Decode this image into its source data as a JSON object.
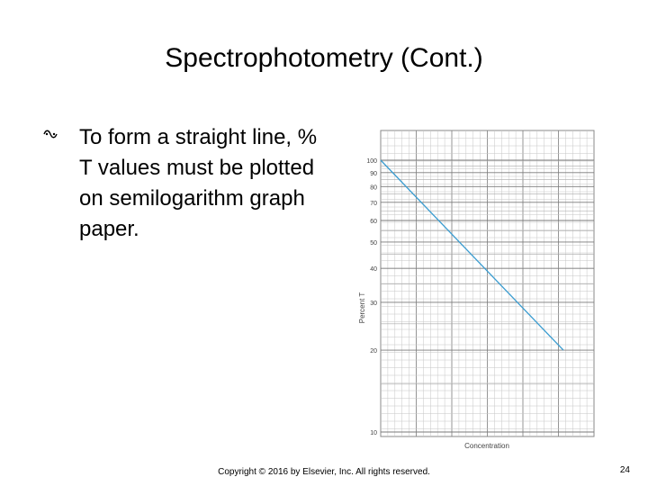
{
  "slide": {
    "title": "Spectrophotometry (Cont.)",
    "bullet_icon": "wingding-bullet-icon",
    "bullet_text": "To form a straight line, % T values must be plotted on semilogarithm graph paper.",
    "copyright": "Copyright © 2016 by Elsevier, Inc. All rights reserved.",
    "page_number": "24"
  },
  "chart_data": {
    "type": "line",
    "xlabel": "Concentration",
    "ylabel": "Percent T",
    "y_scale": "log",
    "ylim": [
      10,
      100
    ],
    "y_ticks": [
      100,
      90,
      80,
      70,
      60,
      50,
      40,
      30,
      20,
      10
    ],
    "x_tick_labels": [],
    "grid": true,
    "series": [
      {
        "color": "#3a9cd0",
        "points": [
          [
            0,
            100
          ],
          [
            1,
            20
          ]
        ]
      }
    ]
  }
}
